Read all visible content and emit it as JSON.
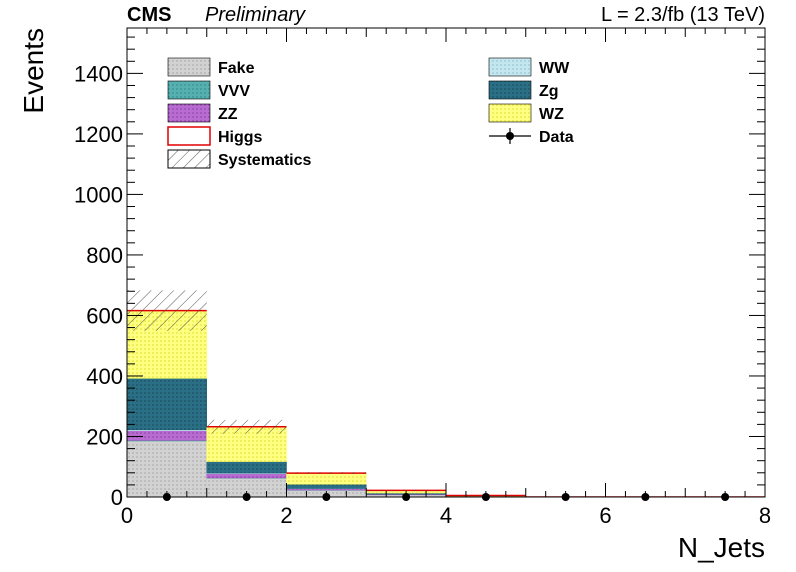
{
  "header": {
    "experiment": "CMS",
    "status": "Preliminary",
    "lumi": "L = 2.3/fb (13 TeV)"
  },
  "chart_data": {
    "type": "bar",
    "stacked": true,
    "xlabel": "N_Jets",
    "ylabel": "Events",
    "xlim": [
      0,
      8
    ],
    "ylim": [
      0,
      1550
    ],
    "x_ticks": [
      "0",
      "2",
      "4",
      "6",
      "8"
    ],
    "y_ticks": [
      "0",
      "200",
      "400",
      "600",
      "800",
      "1000",
      "1200",
      "1400"
    ],
    "bin_edges": [
      0,
      1,
      2,
      3,
      4,
      5,
      6,
      7,
      8
    ],
    "legend_position": "top",
    "series": [
      {
        "name": "Fake",
        "color": "#c8c8c8",
        "values": [
          185,
          62,
          22,
          7,
          2,
          0,
          0,
          0
        ]
      },
      {
        "name": "VVV",
        "color": "#4aa3a3",
        "values": [
          2,
          1,
          1,
          0,
          0,
          0,
          0,
          0
        ]
      },
      {
        "name": "ZZ",
        "color": "#a64fc2",
        "values": [
          32,
          14,
          4,
          2,
          0,
          0,
          0,
          0
        ]
      },
      {
        "name": "WW",
        "color": "#b7dde8",
        "values": [
          3,
          2,
          1,
          0,
          0,
          0,
          0,
          0
        ]
      },
      {
        "name": "Zg",
        "color": "#1a5e73",
        "values": [
          170,
          38,
          14,
          4,
          1,
          0,
          0,
          0
        ]
      },
      {
        "name": "WZ",
        "color": "#ffff66",
        "values": [
          222,
          113,
          36,
          9,
          2,
          0,
          0,
          0
        ]
      },
      {
        "name": "Higgs",
        "color": "#e00000",
        "values": [
          2,
          2,
          1,
          0,
          0,
          0,
          0,
          0
        ]
      }
    ],
    "systematics": {
      "name": "Systematics",
      "upper": [
        683,
        255,
        82,
        24,
        6,
        1,
        0,
        0
      ]
    },
    "data": {
      "name": "Data",
      "x": [
        0.5,
        1.5,
        2.5,
        3.5,
        4.5,
        5.5,
        6.5,
        7.5
      ],
      "y": [
        0,
        0,
        0,
        0,
        0,
        0,
        0,
        0
      ]
    },
    "legend": {
      "left": [
        "Fake",
        "VVV",
        "ZZ",
        "Higgs",
        "Systematics"
      ],
      "right": [
        "WW",
        "Zg",
        "WZ",
        "Data"
      ]
    }
  }
}
